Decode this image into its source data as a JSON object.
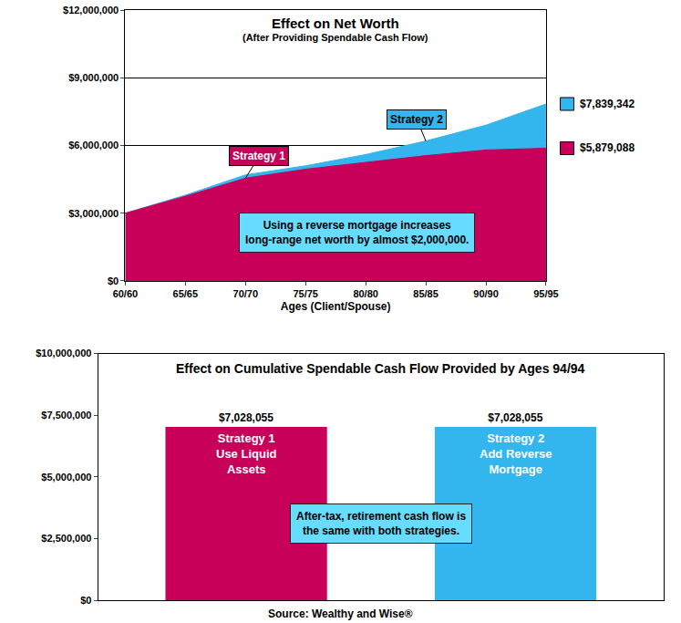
{
  "chart_data": [
    {
      "type": "area",
      "title": "Effect on Net Worth",
      "subtitle": "(After Providing Spendable Cash Flow)",
      "x_label": "Ages (Client/Spouse)",
      "categories": [
        "60/60",
        "65/65",
        "70/70",
        "75/75",
        "80/80",
        "85/85",
        "90/90",
        "95/95"
      ],
      "series": [
        {
          "name": "Strategy 1",
          "color": "#c8005a",
          "values": [
            3000000,
            3750000,
            4550000,
            4950000,
            5250000,
            5550000,
            5800000,
            5879088
          ],
          "value_labels": [
            null,
            null,
            null,
            null,
            null,
            null,
            null,
            "$5,879,088"
          ]
        },
        {
          "name": "Strategy 2",
          "color": "#33b5ee",
          "values": [
            3000000,
            3800000,
            4700000,
            5100000,
            5600000,
            6200000,
            6900000,
            7839342
          ],
          "value_labels": [
            null,
            null,
            null,
            null,
            null,
            null,
            null,
            "$7,839,342"
          ]
        }
      ],
      "ylim": [
        0,
        12000000
      ],
      "yticks": [
        {
          "value": 0,
          "label": "$0"
        },
        {
          "value": 3000000,
          "label": "$3,000,000"
        },
        {
          "value": 6000000,
          "label": "$6,000,000"
        },
        {
          "value": 9000000,
          "label": "$9,000,000"
        },
        {
          "value": 12000000,
          "label": "$12,000,000"
        }
      ],
      "grid": true,
      "data_labels": true,
      "annotations": [
        "Using a reverse mortgage increases long-range net worth by almost $2,000,000."
      ]
    },
    {
      "type": "bar",
      "title": "Effect on Cumulative Spendable Cash Flow Provided by Ages 94/94",
      "categories": [
        "Strategy 1 Use Liquid Assets",
        "Strategy 2 Add Reverse Mortgage"
      ],
      "values": [
        7028055,
        7028055
      ],
      "value_labels": [
        "$7,028,055",
        "$7,028,055"
      ],
      "colors": [
        "#c8005a",
        "#33b5ee"
      ],
      "data_labels": true,
      "tick_labels": "y",
      "grid": false,
      "ylim": [
        0,
        10000000
      ],
      "yticks": [
        {
          "value": 0,
          "label": "$0"
        },
        {
          "value": 2500000,
          "label": "$2,500,000"
        },
        {
          "value": 5000000,
          "label": "$5,000,000"
        },
        {
          "value": 7500000,
          "label": "$7,500,000"
        },
        {
          "value": 10000000,
          "label": "$10,000,000"
        }
      ],
      "annotations": [
        "After-tax, retirement cash flow is the same with both strategies."
      ]
    }
  ],
  "source": "Source: Wealthy and Wise®"
}
